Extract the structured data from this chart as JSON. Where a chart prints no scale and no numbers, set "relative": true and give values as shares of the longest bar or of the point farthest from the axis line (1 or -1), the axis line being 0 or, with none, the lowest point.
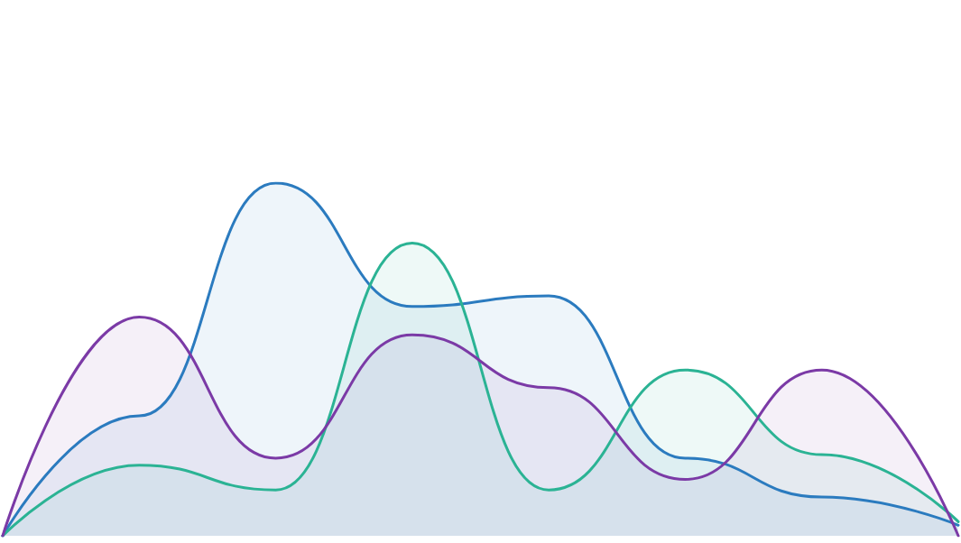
{
  "chart_data": {
    "type": "area",
    "relative": true,
    "categories": [
      null,
      null,
      null,
      null,
      null,
      null,
      null,
      null
    ],
    "series": [
      {
        "color": "#2b7bbf",
        "values": [
          0,
          0.34,
          1,
          0.65,
          0.68,
          0.22,
          0.11,
          0.03
        ]
      },
      {
        "color": "#2bb394",
        "values": [
          0,
          0.2,
          0.13,
          0.83,
          0.13,
          0.47,
          0.23,
          0.04
        ]
      },
      {
        "color": "#7b3aa6",
        "values": [
          0,
          0.62,
          0.22,
          0.57,
          0.42,
          0.16,
          0.47,
          0
        ]
      }
    ]
  }
}
